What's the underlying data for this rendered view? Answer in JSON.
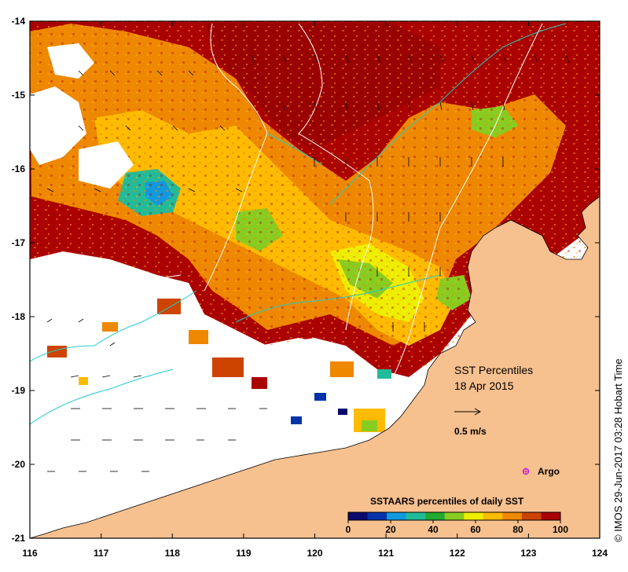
{
  "map": {
    "title_line1": "SST Percentiles",
    "title_line2": "18 Apr 2015",
    "current_scale_label": "0.5 m/s",
    "argo_label": "Argo",
    "colorbar_title": "SSTAARS percentiles of daily SST",
    "credit": "©  IMOS 29-Jun-2017 03:28 Hobart Time",
    "lon_ticks": [
      "116",
      "117",
      "118",
      "119",
      "120",
      "121",
      "122",
      "123",
      "124"
    ],
    "lat_ticks": [
      "-14",
      "-15",
      "-16",
      "-17",
      "-18",
      "-19",
      "-20",
      "-21"
    ],
    "colorbar_ticks": [
      "0",
      "20",
      "40",
      "60",
      "80",
      "100"
    ],
    "colorbar_colors": [
      "#0a0a6e",
      "#0033aa",
      "#1199dd",
      "#22bb99",
      "#22aa33",
      "#88cc22",
      "#eeee00",
      "#ffbb00",
      "#ee8800",
      "#cc4400",
      "#aa0000"
    ],
    "land_color": "#f7c08f",
    "isobath_color": "#ffffff",
    "contour_color": "#22cccc",
    "argo_color": "#cc22cc"
  }
}
